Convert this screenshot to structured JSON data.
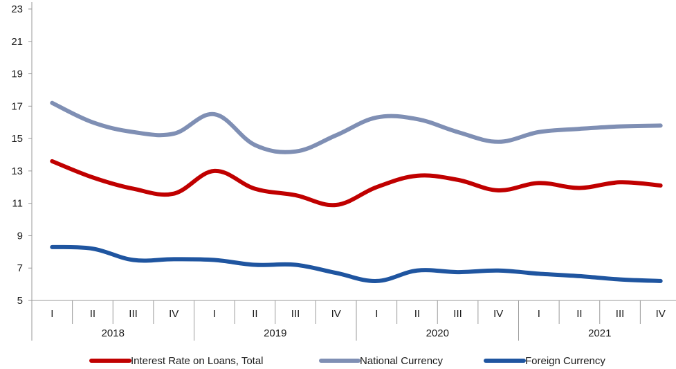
{
  "chart_data": {
    "type": "line",
    "title": "",
    "xlabel": "",
    "ylabel": "",
    "ylim": [
      5,
      23
    ],
    "yticks": [
      5,
      7,
      9,
      11,
      13,
      15,
      17,
      19,
      21,
      23
    ],
    "grid": false,
    "legend_position": "bottom",
    "quarters": [
      "I",
      "II",
      "III",
      "IV",
      "I",
      "II",
      "III",
      "IV",
      "I",
      "II",
      "III",
      "IV",
      "I",
      "II",
      "III",
      "IV"
    ],
    "years": [
      "2018",
      "2019",
      "2020",
      "2021"
    ],
    "series": [
      {
        "name": "Interest Rate on Loans, Total",
        "color": "#c00000",
        "values": [
          13.6,
          12.6,
          11.9,
          11.6,
          13.0,
          11.9,
          11.5,
          10.9,
          12.0,
          12.7,
          12.45,
          11.8,
          12.25,
          11.95,
          12.3,
          12.1
        ]
      },
      {
        "name": "National Currency",
        "color": "#7f8fb4",
        "values": [
          17.2,
          16.0,
          15.4,
          15.3,
          16.5,
          14.6,
          14.2,
          15.2,
          16.3,
          16.2,
          15.4,
          14.8,
          15.4,
          15.6,
          15.75,
          15.8
        ]
      },
      {
        "name": "Foreign Currency",
        "color": "#1f55a0",
        "values": [
          8.3,
          8.2,
          7.5,
          7.55,
          7.5,
          7.2,
          7.2,
          6.7,
          6.2,
          6.85,
          6.75,
          6.85,
          6.65,
          6.5,
          6.3,
          6.2
        ]
      }
    ]
  }
}
